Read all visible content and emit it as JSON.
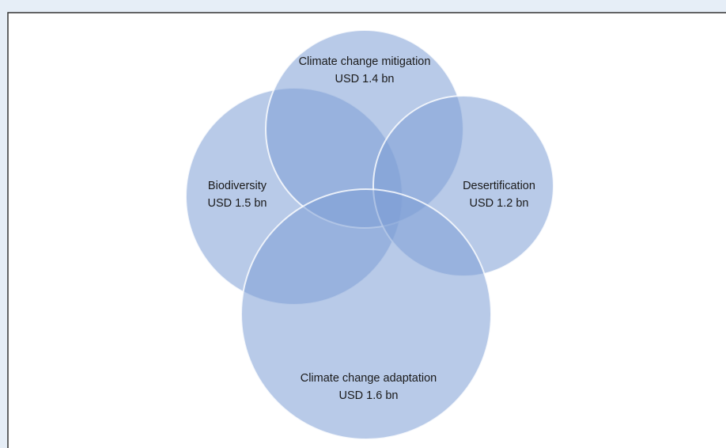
{
  "nodes": [
    {
      "name": "Climate change mitigation",
      "amount": "USD 1.4 bn"
    },
    {
      "name": "Biodiversity",
      "amount": "USD 1.5 bn"
    },
    {
      "name": "Desertification",
      "amount": "USD 1.2 bn"
    },
    {
      "name": "Climate change adaptation",
      "amount": "USD 1.6 bn"
    }
  ]
}
